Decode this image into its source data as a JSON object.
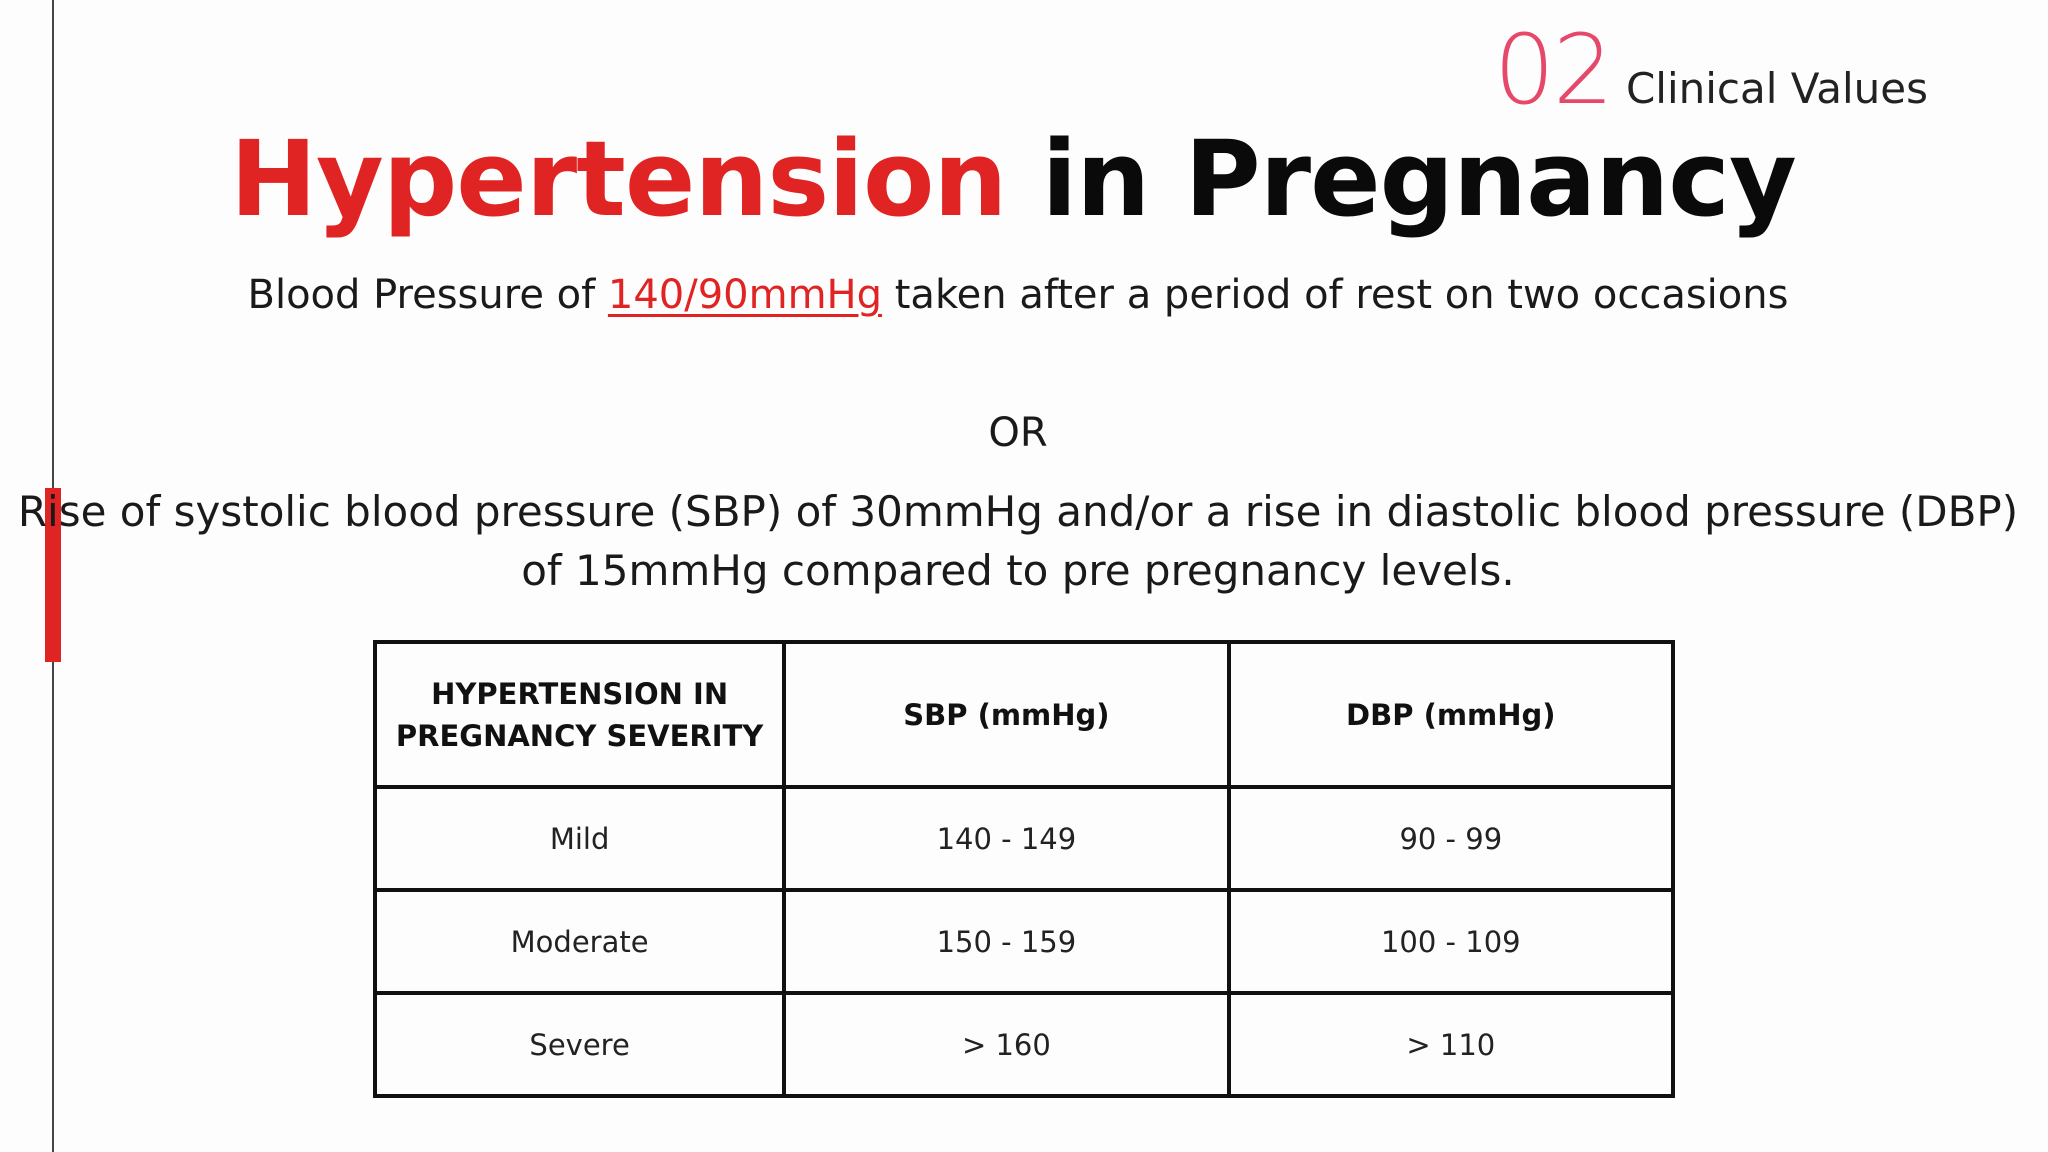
{
  "section": {
    "number": "02",
    "label": "Clinical Values"
  },
  "title": {
    "part1": "Hypertension",
    "part2": "in Pregnancy"
  },
  "body": {
    "p1_before": "Blood Pressure of ",
    "p1_highlight": "140/90mmHg",
    "p1_after": " taken after a period of rest on two occasions",
    "or": "OR",
    "p2": "Rise of systolic blood pressure (SBP) of 30mmHg and/or a rise in diastolic blood pressure (DBP) of 15mmHg compared to pre pregnancy levels."
  },
  "table": {
    "headers": [
      "HYPERTENSION IN PREGNANCY SEVERITY",
      "SBP (mmHg)",
      "DBP (mmHg)"
    ],
    "rows": [
      [
        "Mild",
        "140 - 149",
        "90 - 99"
      ],
      [
        "Moderate",
        "150 - 159",
        "100 - 109"
      ],
      [
        "Severe",
        "> 160",
        "> 110"
      ]
    ]
  },
  "colors": {
    "accent_red": "#e02424",
    "section_pink": "#e6486a"
  }
}
